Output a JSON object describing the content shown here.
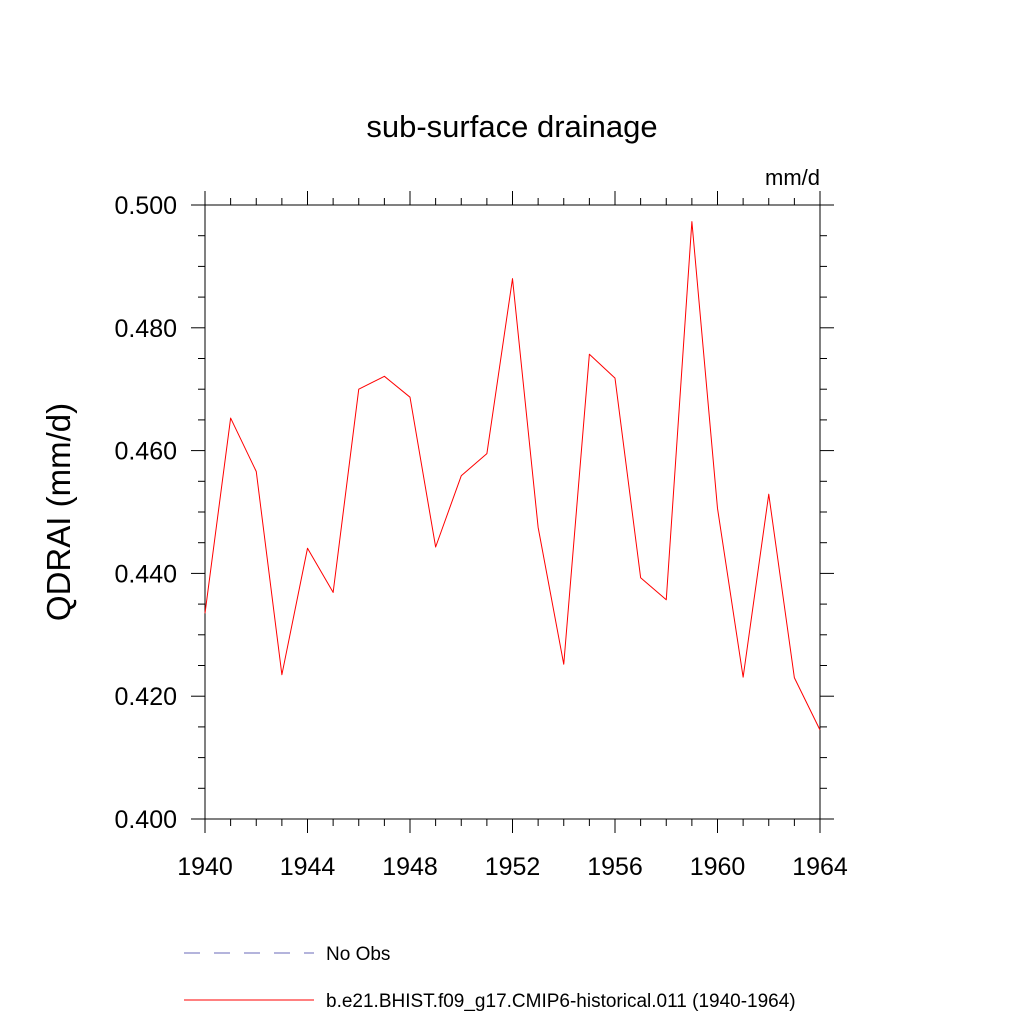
{
  "chart_data": {
    "type": "line",
    "title": "sub-surface drainage",
    "units_label": "mm/d",
    "xlabel": "",
    "ylabel": "QDRAI  (mm/d)",
    "xlim": [
      1940,
      1964
    ],
    "ylim": [
      0.4,
      0.5
    ],
    "x_ticks": [
      1940,
      1944,
      1948,
      1952,
      1956,
      1960,
      1964
    ],
    "x_tick_labels": [
      "1940",
      "1944",
      "1948",
      "1952",
      "1956",
      "1960",
      "1964"
    ],
    "y_ticks": [
      0.4,
      0.42,
      0.44,
      0.46,
      0.48,
      0.5
    ],
    "y_tick_labels": [
      "0.400",
      "0.420",
      "0.440",
      "0.460",
      "0.480",
      "0.500"
    ],
    "x": [
      1940,
      1941,
      1942,
      1943,
      1944,
      1945,
      1946,
      1947,
      1948,
      1949,
      1950,
      1951,
      1952,
      1953,
      1954,
      1955,
      1956,
      1957,
      1958,
      1959,
      1960,
      1961,
      1962,
      1963,
      1964
    ],
    "series": [
      {
        "name": "b.e21.BHIST.f09_g17.CMIP6-historical.011 (1940-1964)",
        "color": "#ff0000",
        "style": "solid",
        "values": [
          0.4335,
          0.4653,
          0.4566,
          0.4235,
          0.4441,
          0.4369,
          0.47,
          0.4721,
          0.4687,
          0.4443,
          0.4559,
          0.4595,
          0.488,
          0.4475,
          0.4252,
          0.4757,
          0.4718,
          0.4393,
          0.4357,
          0.4973,
          0.4506,
          0.4231,
          0.4529,
          0.423,
          0.4145
        ]
      }
    ],
    "legend": {
      "placement": "bottom",
      "entries": [
        {
          "label": "No Obs",
          "color": "#6a6ab8",
          "style": "dashed"
        },
        {
          "label": "b.e21.BHIST.f09_g17.CMIP6-historical.011 (1940-1964)",
          "color": "#ff0000",
          "style": "solid"
        }
      ]
    },
    "grid": false
  }
}
